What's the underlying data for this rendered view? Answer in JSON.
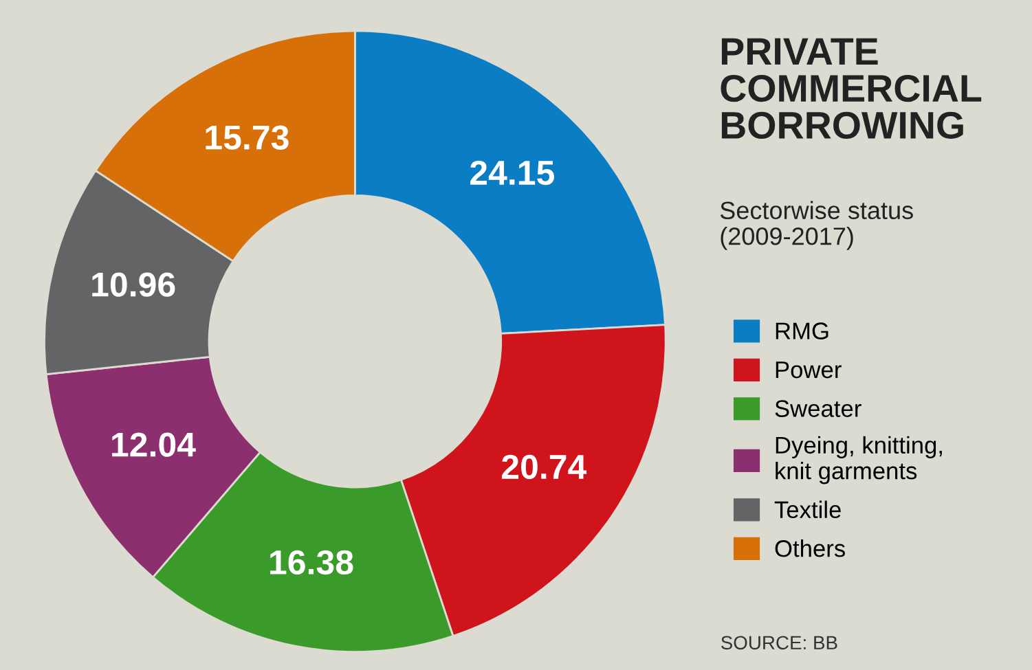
{
  "chart_data": {
    "type": "donut",
    "title": "PRIVATE\nCOMMERCIAL\nBORROWING",
    "subtitle": "Sectorwise status\n(2009-2017)",
    "categories": [
      "RMG",
      "Power",
      "Sweater",
      "Dyeing, knitting,\nknit garments",
      "Textile",
      "Others"
    ],
    "values": [
      24.15,
      20.74,
      16.38,
      12.04,
      10.96,
      15.73
    ],
    "colors": [
      "#0a7dc4",
      "#d0141c",
      "#3a9a2a",
      "#8c2f6e",
      "#636466",
      "#d8700a"
    ],
    "data_labels": true,
    "legend": "right",
    "annotations": [
      "SOURCE: BB"
    ]
  }
}
